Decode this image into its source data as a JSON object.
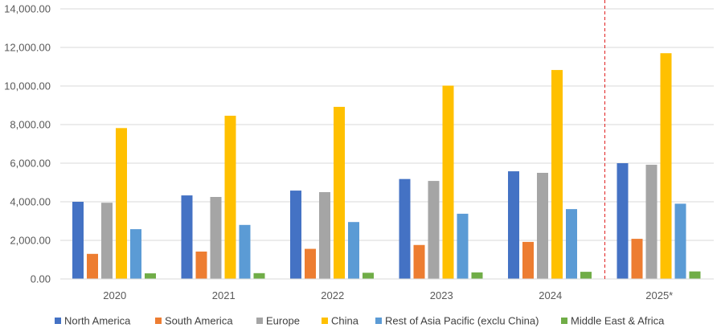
{
  "chart_data": {
    "type": "bar",
    "title": "",
    "xlabel": "",
    "ylabel": "",
    "categories": [
      "2020",
      "2021",
      "2022",
      "2023",
      "2024",
      "2025*"
    ],
    "ylim": [
      0,
      14000
    ],
    "yticks": [
      0,
      2000,
      4000,
      6000,
      8000,
      10000,
      12000,
      14000
    ],
    "ytick_labels": [
      "0.00",
      "2,000.00",
      "4,000.00",
      "6,000.00",
      "8,000.00",
      "10,000.00",
      "12,000.00",
      "14,000.00"
    ],
    "grid": true,
    "legend_position": "bottom",
    "forecast_divider": {
      "after_category": "2024",
      "style": "dashed",
      "color": "#e02020"
    },
    "series": [
      {
        "name": "North America",
        "color": "#4472c4",
        "values": [
          4000,
          4330,
          4580,
          5180,
          5580,
          6000
        ]
      },
      {
        "name": "South America",
        "color": "#ed7d31",
        "values": [
          1300,
          1420,
          1560,
          1760,
          1920,
          2080
        ]
      },
      {
        "name": "Europe",
        "color": "#a5a5a5",
        "values": [
          3950,
          4250,
          4500,
          5080,
          5500,
          5920
        ]
      },
      {
        "name": "China",
        "color": "#ffc000",
        "values": [
          7820,
          8460,
          8920,
          10020,
          10830,
          11700
        ]
      },
      {
        "name": "Rest of Asia Pacific (exclu China)",
        "color": "#5b9bd5",
        "values": [
          2580,
          2800,
          2950,
          3380,
          3620,
          3900
        ]
      },
      {
        "name": "Middle East & Africa",
        "color": "#70ad47",
        "values": [
          290,
          300,
          320,
          340,
          370,
          390
        ]
      }
    ]
  }
}
